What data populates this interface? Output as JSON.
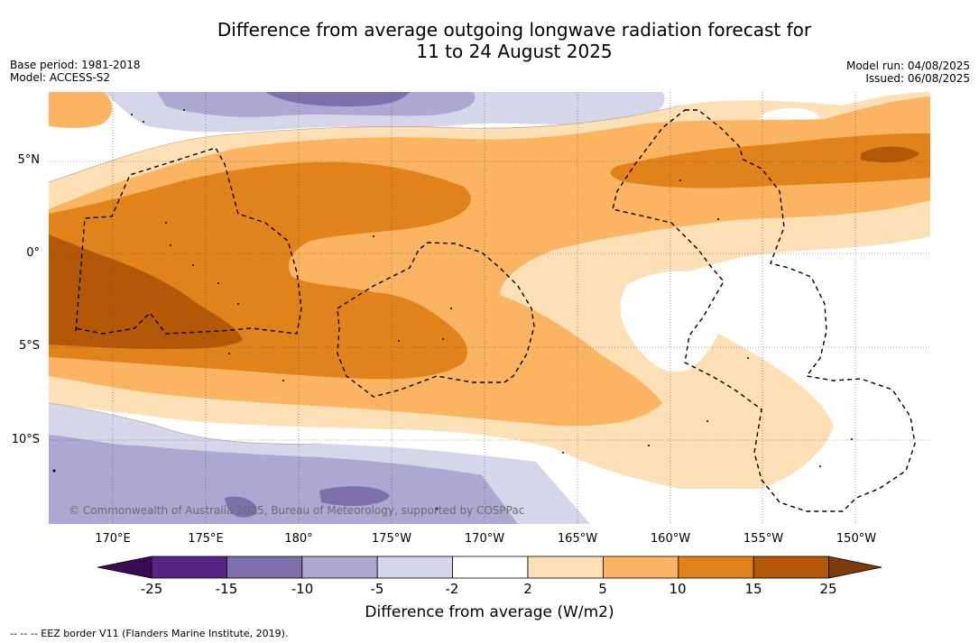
{
  "header": {
    "title_line1": "Difference from average outgoing longwave radiation forecast for",
    "title_line2": "11 to 24 August 2025",
    "base_period": "Base period: 1981-2018",
    "model": "Model: ACCESS-S2",
    "model_run": "Model run: 04/08/2025",
    "issued": "Issued: 06/08/2025"
  },
  "map": {
    "lat_labels": [
      "5°N",
      "0°",
      "5°S",
      "10°S"
    ],
    "lon_labels": [
      "170°E",
      "175°E",
      "180°",
      "175°W",
      "170°W",
      "165°W",
      "160°W",
      "155°W",
      "150°W"
    ],
    "copyright": "© Commonwealth of Australia 2025, Bureau of Meteorology, supported by COSPPac"
  },
  "colorbar": {
    "title": "Difference from average (W/m2)",
    "ticks": [
      "-25",
      "-15",
      "-10",
      "-5",
      "-2",
      "2",
      "5",
      "10",
      "15",
      "25"
    ],
    "colors": {
      "below_-25": "#3b0a55",
      "-25_-15": "#562485",
      "-15_-10": "#7d70ac",
      "-10_-5": "#ada8d2",
      "-5_-2": "#d6d6ea",
      "-2_2": "#ffffff",
      "2_5": "#fde0b6",
      "5_10": "#fbb562",
      "10_15": "#e2821a",
      "15_25": "#b35806",
      "above_25": "#7f3b08"
    }
  },
  "footer": {
    "eez_note": "--  --  -- EEZ border V11 (Flanders Marine Institute, 2019)."
  }
}
